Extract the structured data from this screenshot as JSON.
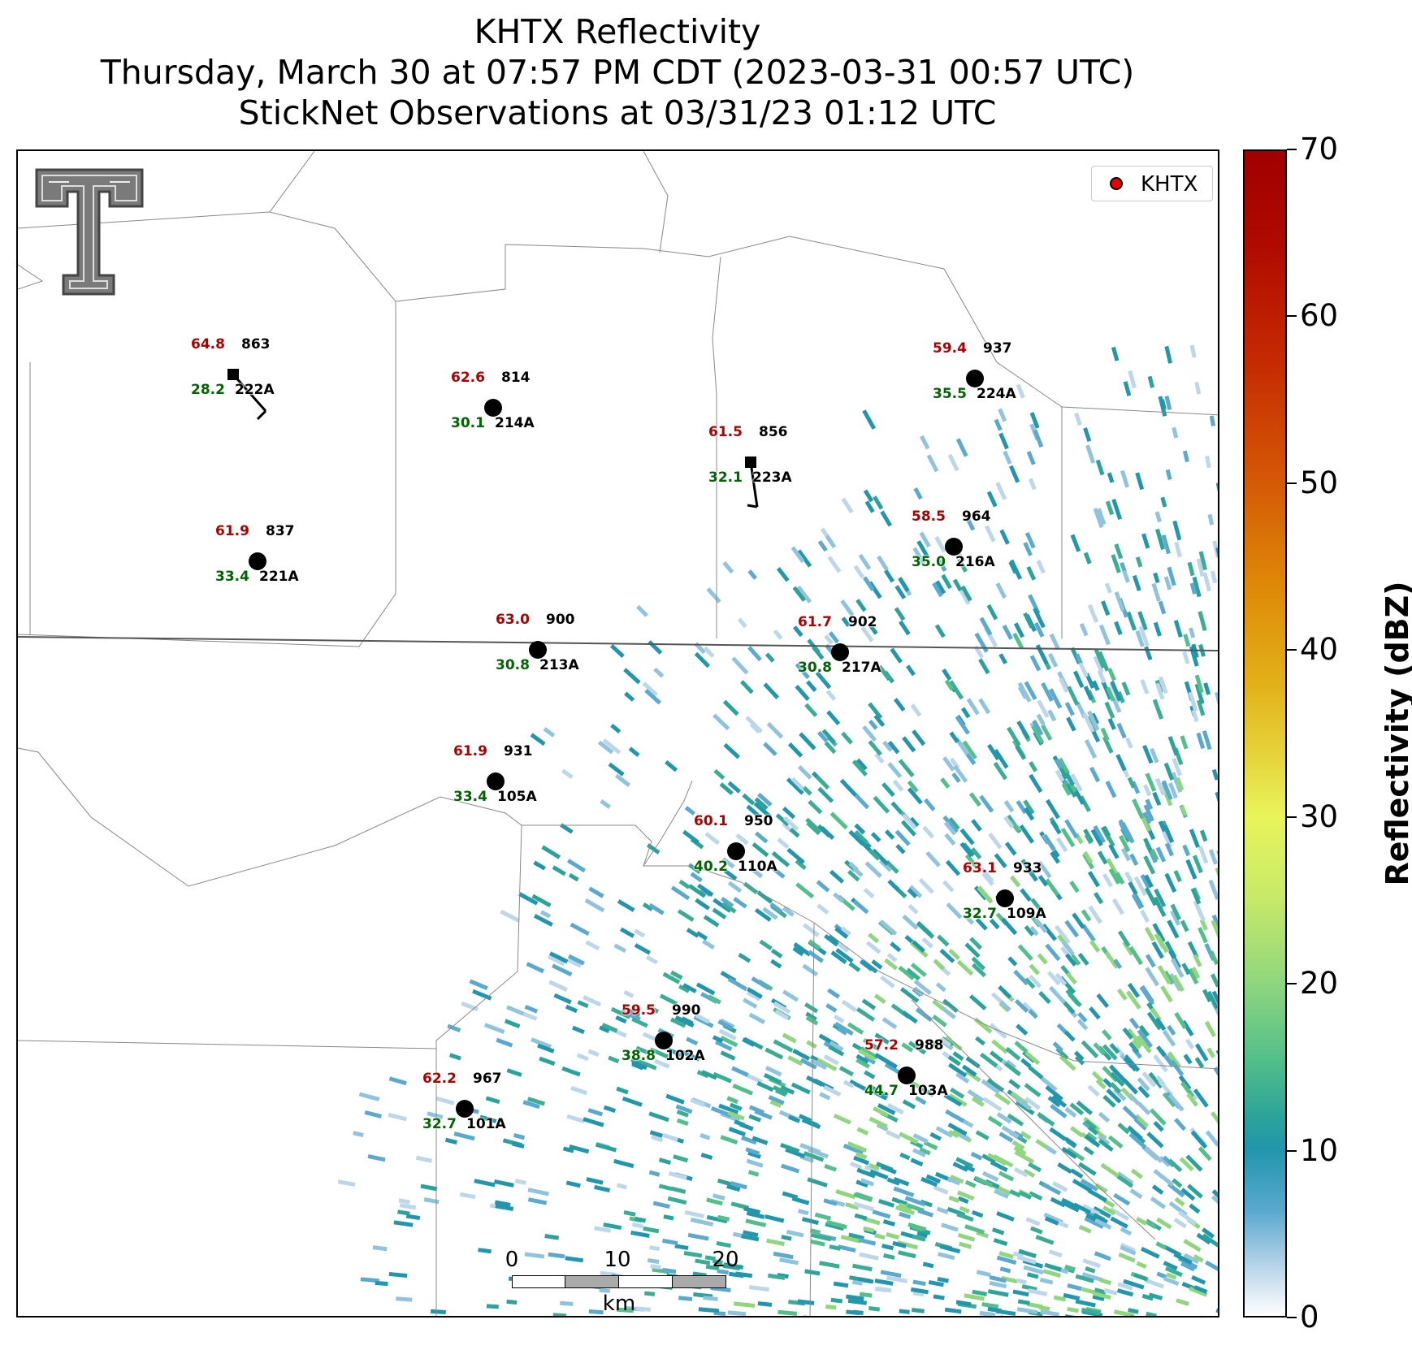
{
  "title": {
    "line1": "KHTX Reflectivity",
    "line2": "Thursday, March 30 at 07:57 PM CDT (2023-03-31 00:57 UTC)",
    "line3": "StickNet Observations at 03/31/23 01:12 UTC"
  },
  "logo": {
    "name": "Texas Tech Double T",
    "color": "#666666"
  },
  "legend": {
    "label": "KHTX",
    "marker_color": "#e60000"
  },
  "colorbar": {
    "label": "Reflectivity (dBZ)",
    "min": 0,
    "max": 70,
    "ticks": [
      "0",
      "10",
      "20",
      "30",
      "40",
      "50",
      "60",
      "70"
    ],
    "colors": [
      "#ffffff",
      "#2196ac",
      "#8fd67e",
      "#e8f45a",
      "#e2b21a",
      "#d55a06",
      "#c52a02",
      "#a00000"
    ]
  },
  "scale_bar": {
    "ticks": [
      "0",
      "10",
      "20"
    ],
    "unit": "km"
  },
  "stations": [
    {
      "id": "222A",
      "temp": "64.8",
      "dew": "28.2",
      "pres": "863",
      "marker": "square"
    },
    {
      "id": "214A",
      "temp": "62.6",
      "dew": "30.1",
      "pres": "814",
      "marker": "circle"
    },
    {
      "id": "224A",
      "temp": "59.4",
      "dew": "35.5",
      "pres": "937",
      "marker": "circle"
    },
    {
      "id": "223A",
      "temp": "61.5",
      "dew": "32.1",
      "pres": "856",
      "marker": "square"
    },
    {
      "id": "221A",
      "temp": "61.9",
      "dew": "33.4",
      "pres": "837",
      "marker": "circle"
    },
    {
      "id": "216A",
      "temp": "58.5",
      "dew": "35.0",
      "pres": "964",
      "marker": "circle"
    },
    {
      "id": "213A",
      "temp": "63.0",
      "dew": "30.8",
      "pres": "900",
      "marker": "circle"
    },
    {
      "id": "217A",
      "temp": "61.7",
      "dew": "30.8",
      "pres": "902",
      "marker": "circle"
    },
    {
      "id": "105A",
      "temp": "61.9",
      "dew": "33.4",
      "pres": "931",
      "marker": "circle"
    },
    {
      "id": "110A",
      "temp": "60.1",
      "dew": "40.2",
      "pres": "950",
      "marker": "circle"
    },
    {
      "id": "109A",
      "temp": "63.1",
      "dew": "32.7",
      "pres": "933",
      "marker": "circle"
    },
    {
      "id": "102A",
      "temp": "59.5",
      "dew": "38.8",
      "pres": "990",
      "marker": "circle"
    },
    {
      "id": "103A",
      "temp": "57.2",
      "dew": "44.7",
      "pres": "988",
      "marker": "circle"
    },
    {
      "id": "101A",
      "temp": "62.2",
      "dew": "32.7",
      "pres": "967",
      "marker": "circle"
    }
  ]
}
